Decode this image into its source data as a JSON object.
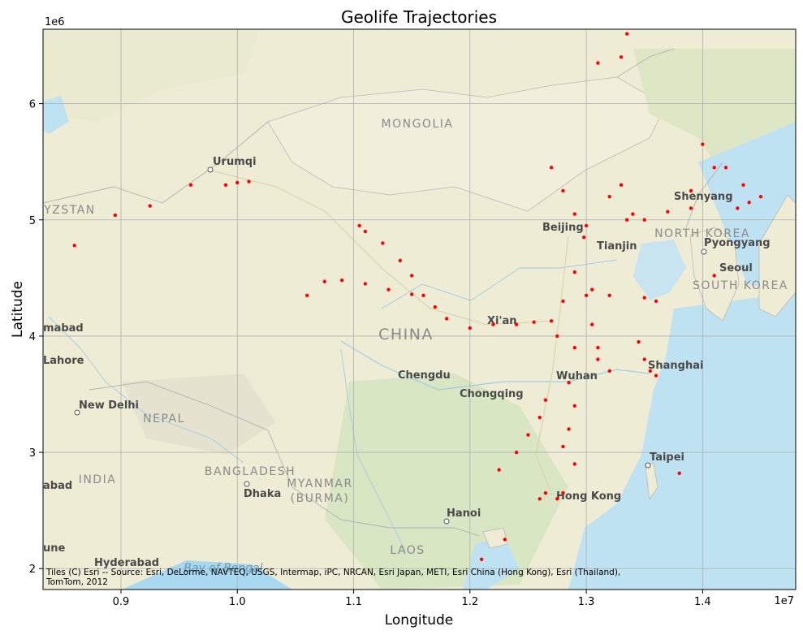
{
  "chart_data": {
    "type": "scatter",
    "title": "Geolife Trajectories",
    "xlabel": "Longitude",
    "ylabel": "Latitude",
    "x_offset_text": "1e7",
    "y_offset_text": "1e6",
    "xlim": [
      0.833,
      1.48
    ],
    "ylim": [
      1.82,
      6.64
    ],
    "x_ticks": [
      0.9,
      1.0,
      1.1,
      1.2,
      1.3,
      1.4
    ],
    "y_ticks": [
      2,
      3,
      4,
      5,
      6
    ],
    "x_tick_labels": [
      "0.9",
      "1.0",
      "1.1",
      "1.2",
      "1.3",
      "1.4"
    ],
    "y_tick_labels": [
      "2",
      "3",
      "4",
      "5",
      "6"
    ],
    "grid": true,
    "marker_color": "#ff0000",
    "basemap": "Esri World Street Map",
    "attribution": [
      "Tiles (C) Esri -- Source: Esri, DeLorme, NAVTEQ, USGS, Intermap, iPC, NRCAN, Esri Japan, METI, Esri China (Hong Kong), Esri (Thailand),",
      "TomTom, 2012"
    ],
    "map_labels": {
      "cities": [
        "Urumqi",
        "Beijing",
        "Tianjin",
        "Shenyang",
        "Pyongyang",
        "Seoul",
        "Xi'an",
        "Chengdu",
        "Chongqing",
        "Wuhan",
        "Shanghai",
        "New Delhi",
        "Dhaka",
        "Taipei",
        "Hong Kong",
        "Hanoi",
        "Hyderabad",
        "mabad",
        "Lahore",
        "abad",
        "une"
      ],
      "countries": [
        "MONGOLIA",
        "CHINA",
        "NORTH KOREA",
        "SOUTH KOREA",
        "NEPAL",
        "INDIA",
        "BANGLADESH",
        "MYANMAR",
        "(BURMA)",
        "LAOS",
        "YZSTAN"
      ],
      "water": [
        "Bay of Bengal"
      ]
    },
    "series": [
      {
        "values": [
          {
            "x": 1.105,
            "y": 4.95
          },
          {
            "x": 1.11,
            "y": 4.9
          },
          {
            "x": 1.125,
            "y": 4.8
          },
          {
            "x": 1.14,
            "y": 4.65
          },
          {
            "x": 1.15,
            "y": 4.52
          },
          {
            "x": 1.06,
            "y": 4.35
          },
          {
            "x": 1.075,
            "y": 4.47
          },
          {
            "x": 1.09,
            "y": 4.48
          },
          {
            "x": 1.11,
            "y": 4.45
          },
          {
            "x": 1.13,
            "y": 4.4
          },
          {
            "x": 1.15,
            "y": 4.36
          },
          {
            "x": 1.16,
            "y": 4.35
          },
          {
            "x": 1.17,
            "y": 4.25
          },
          {
            "x": 1.18,
            "y": 4.15
          },
          {
            "x": 1.2,
            "y": 4.07
          },
          {
            "x": 1.22,
            "y": 4.1
          },
          {
            "x": 1.24,
            "y": 4.1
          },
          {
            "x": 1.255,
            "y": 4.12
          },
          {
            "x": 1.27,
            "y": 4.13
          },
          {
            "x": 1.28,
            "y": 4.3
          },
          {
            "x": 1.29,
            "y": 4.55
          },
          {
            "x": 1.298,
            "y": 4.85
          },
          {
            "x": 1.27,
            "y": 5.45
          },
          {
            "x": 1.28,
            "y": 5.25
          },
          {
            "x": 1.29,
            "y": 5.05
          },
          {
            "x": 1.3,
            "y": 4.95
          },
          {
            "x": 1.32,
            "y": 5.2
          },
          {
            "x": 1.33,
            "y": 5.3
          },
          {
            "x": 1.335,
            "y": 5.0
          },
          {
            "x": 1.34,
            "y": 5.05
          },
          {
            "x": 1.35,
            "y": 5.0
          },
          {
            "x": 1.37,
            "y": 5.07
          },
          {
            "x": 1.39,
            "y": 5.25
          },
          {
            "x": 1.41,
            "y": 5.45
          },
          {
            "x": 1.42,
            "y": 5.45
          },
          {
            "x": 1.305,
            "y": 4.4
          },
          {
            "x": 1.32,
            "y": 4.35
          },
          {
            "x": 1.35,
            "y": 4.33
          },
          {
            "x": 1.36,
            "y": 4.3
          },
          {
            "x": 1.3,
            "y": 4.35
          },
          {
            "x": 1.305,
            "y": 4.1
          },
          {
            "x": 1.31,
            "y": 3.9
          },
          {
            "x": 1.32,
            "y": 3.7
          },
          {
            "x": 1.275,
            "y": 4.0
          },
          {
            "x": 1.29,
            "y": 3.9
          },
          {
            "x": 1.31,
            "y": 3.8
          },
          {
            "x": 1.345,
            "y": 3.95
          },
          {
            "x": 1.35,
            "y": 3.8
          },
          {
            "x": 1.355,
            "y": 3.7
          },
          {
            "x": 1.36,
            "y": 3.66
          },
          {
            "x": 1.265,
            "y": 3.45
          },
          {
            "x": 1.26,
            "y": 3.3
          },
          {
            "x": 1.25,
            "y": 3.15
          },
          {
            "x": 1.24,
            "y": 3.0
          },
          {
            "x": 1.225,
            "y": 2.85
          },
          {
            "x": 1.285,
            "y": 3.6
          },
          {
            "x": 1.29,
            "y": 3.4
          },
          {
            "x": 1.285,
            "y": 3.2
          },
          {
            "x": 1.28,
            "y": 3.05
          },
          {
            "x": 1.29,
            "y": 2.9
          },
          {
            "x": 1.265,
            "y": 2.65
          },
          {
            "x": 1.275,
            "y": 2.6
          },
          {
            "x": 1.28,
            "y": 2.65
          },
          {
            "x": 1.335,
            "y": 6.6
          },
          {
            "x": 1.33,
            "y": 6.4
          },
          {
            "x": 1.31,
            "y": 6.35
          },
          {
            "x": 0.96,
            "y": 5.3
          },
          {
            "x": 0.99,
            "y": 5.3
          },
          {
            "x": 1.0,
            "y": 5.32
          },
          {
            "x": 1.01,
            "y": 5.33
          },
          {
            "x": 0.86,
            "y": 4.78
          },
          {
            "x": 0.895,
            "y": 5.04
          },
          {
            "x": 0.925,
            "y": 5.12
          },
          {
            "x": 1.21,
            "y": 2.08
          },
          {
            "x": 1.23,
            "y": 2.25
          },
          {
            "x": 1.26,
            "y": 2.6
          },
          {
            "x": 1.38,
            "y": 2.82
          },
          {
            "x": 1.41,
            "y": 4.52
          },
          {
            "x": 1.43,
            "y": 5.1
          },
          {
            "x": 1.45,
            "y": 5.2
          },
          {
            "x": 1.4,
            "y": 5.65
          },
          {
            "x": 1.39,
            "y": 5.1
          },
          {
            "x": 1.435,
            "y": 5.3
          },
          {
            "x": 1.44,
            "y": 5.15
          }
        ]
      }
    ]
  }
}
